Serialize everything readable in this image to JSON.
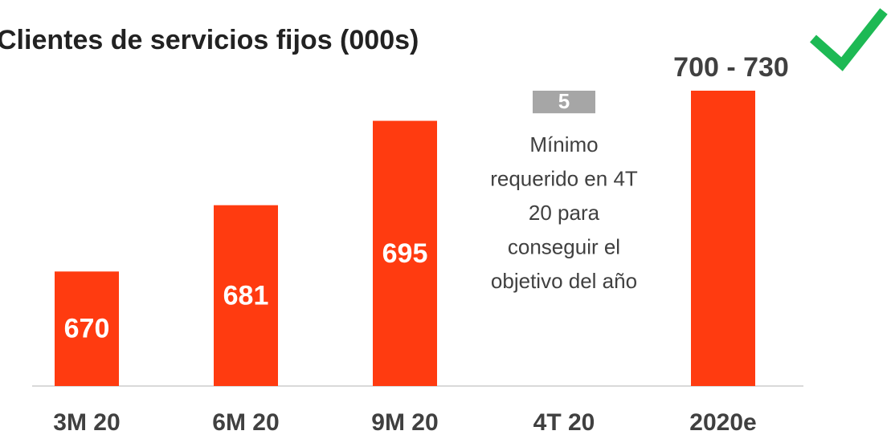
{
  "chart_data": {
    "type": "waterfall",
    "title": "Clientes de servicios fijos (000s)",
    "categories": [
      "3M 20",
      "6M 20",
      "9M 20",
      "4T 20",
      "2020e"
    ],
    "values": [
      670,
      681,
      695,
      5,
      700
    ],
    "value_labels": [
      "670",
      "681",
      "695",
      "5",
      "700 - 730"
    ],
    "measure": [
      "absolute",
      "absolute",
      "absolute",
      "relative",
      "absolute"
    ],
    "colors": [
      "#ff3b10",
      "#ff3b10",
      "#ff3b10",
      "#a6a6a6",
      "#ff3b10"
    ],
    "ylim": [
      651,
      700
    ],
    "annotation": [
      "Mínimo",
      "requerido en 4T",
      "20 para",
      "conseguir el",
      "objetivo del año"
    ]
  }
}
